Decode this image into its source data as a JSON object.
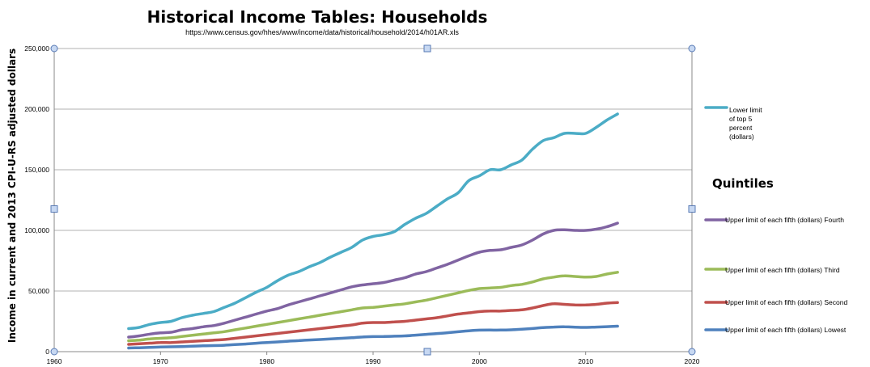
{
  "chart_data": {
    "type": "line",
    "title": "Historical Income Tables: Households",
    "subtitle": "https://www.census.gov/hhes/www/income/data/historical/household/2014/h01AR.xls",
    "ylabel": "Income in current and 2013 CPI-U-RS adjusted dollars",
    "xlabel": "",
    "xlim": [
      1960,
      2020
    ],
    "ylim": [
      0,
      250000
    ],
    "x_ticks": [
      "1960",
      "1970",
      "1980",
      "1990",
      "2000",
      "2010",
      "2020"
    ],
    "y_ticks": [
      "0",
      "50,000",
      "100,000",
      "150,000",
      "200,000",
      "250,000"
    ],
    "grid": true,
    "legend_heading": "Quintiles",
    "legend_position": "right",
    "x": [
      1967,
      1968,
      1969,
      1970,
      1971,
      1972,
      1973,
      1974,
      1975,
      1976,
      1977,
      1978,
      1979,
      1980,
      1981,
      1982,
      1983,
      1984,
      1985,
      1986,
      1987,
      1988,
      1989,
      1990,
      1991,
      1992,
      1993,
      1994,
      1995,
      1996,
      1997,
      1998,
      1999,
      2000,
      2001,
      2002,
      2003,
      2004,
      2005,
      2006,
      2007,
      2008,
      2009,
      2010,
      2011,
      2012,
      2013
    ],
    "series": [
      {
        "name": "Lower limit of top 5 percent (dollars)",
        "legend_lines": [
          "Lower limit",
          "of top 5",
          "percent",
          "(dollars)"
        ],
        "color": "#4bacc6",
        "values": [
          19000,
          20000,
          22500,
          24000,
          25000,
          28000,
          30000,
          31500,
          33000,
          36500,
          40000,
          44500,
          49000,
          53000,
          58500,
          63000,
          66000,
          70000,
          73500,
          78000,
          82000,
          86000,
          92000,
          95000,
          96500,
          99000,
          105000,
          110000,
          114000,
          120000,
          126000,
          131000,
          141000,
          145000,
          150000,
          150000,
          154000,
          158000,
          167000,
          174000,
          176500,
          180000,
          180000,
          180000,
          185000,
          191000,
          196000
        ]
      },
      {
        "name": "Upper limit of each fifth (dollars) Fourth",
        "legend_lines": [
          "Upper limit of each fifth (dollars) Fourth"
        ],
        "color": "#8064a2",
        "values": [
          12000,
          13000,
          14500,
          15500,
          16000,
          18000,
          19000,
          20500,
          21500,
          23500,
          26000,
          28500,
          31000,
          33500,
          35500,
          38500,
          41000,
          43500,
          46000,
          48500,
          51000,
          53500,
          55000,
          56000,
          57000,
          59000,
          61000,
          64000,
          66000,
          69000,
          72000,
          75500,
          79000,
          82000,
          83500,
          84000,
          86000,
          88000,
          92000,
          97000,
          100000,
          100500,
          100000,
          100000,
          101000,
          103000,
          106000
        ]
      },
      {
        "name": "Upper limit of each fifth (dollars) Third",
        "legend_lines": [
          "Upper limit of each fifth (dollars) Third"
        ],
        "color": "#9bbb59",
        "values": [
          9000,
          9500,
          10500,
          11000,
          11500,
          12500,
          13500,
          14500,
          15500,
          16500,
          18000,
          19500,
          21000,
          22500,
          24000,
          25500,
          27000,
          28500,
          30000,
          31500,
          33000,
          34500,
          36000,
          36500,
          37500,
          38500,
          39500,
          41000,
          42500,
          44500,
          46500,
          48500,
          50500,
          52000,
          52500,
          53000,
          54500,
          55500,
          57500,
          60000,
          61500,
          62500,
          62000,
          61500,
          62000,
          64000,
          65500
        ]
      },
      {
        "name": "Upper limit of each fifth (dollars) Second",
        "legend_lines": [
          "Upper limit of each fifth (dollars) Second"
        ],
        "color": "#c0504d",
        "values": [
          6000,
          6500,
          7000,
          7500,
          7500,
          8000,
          8500,
          9000,
          9500,
          10000,
          11000,
          12000,
          13000,
          14000,
          15000,
          16000,
          17000,
          18000,
          19000,
          20000,
          21000,
          22000,
          23500,
          24000,
          24000,
          24500,
          25000,
          26000,
          27000,
          28000,
          29500,
          31000,
          32000,
          33000,
          33500,
          33500,
          34000,
          34500,
          36000,
          38000,
          39500,
          39000,
          38500,
          38500,
          39000,
          40000,
          40500
        ]
      },
      {
        "name": "Upper limit of each fifth (dollars) Lowest",
        "legend_lines": [
          "Upper limit of each fifth (dollars) Lowest"
        ],
        "color": "#4f81bd",
        "values": [
          3000,
          3200,
          3500,
          3800,
          4000,
          4200,
          4500,
          4800,
          5000,
          5300,
          5800,
          6300,
          6900,
          7500,
          8000,
          8600,
          9100,
          9600,
          10000,
          10500,
          11000,
          11500,
          12100,
          12400,
          12500,
          12700,
          13000,
          13600,
          14300,
          14900,
          15600,
          16400,
          17200,
          17700,
          17800,
          17800,
          18000,
          18500,
          19100,
          19800,
          20300,
          20500,
          20200,
          20000,
          20300,
          20600,
          21000
        ]
      }
    ]
  }
}
